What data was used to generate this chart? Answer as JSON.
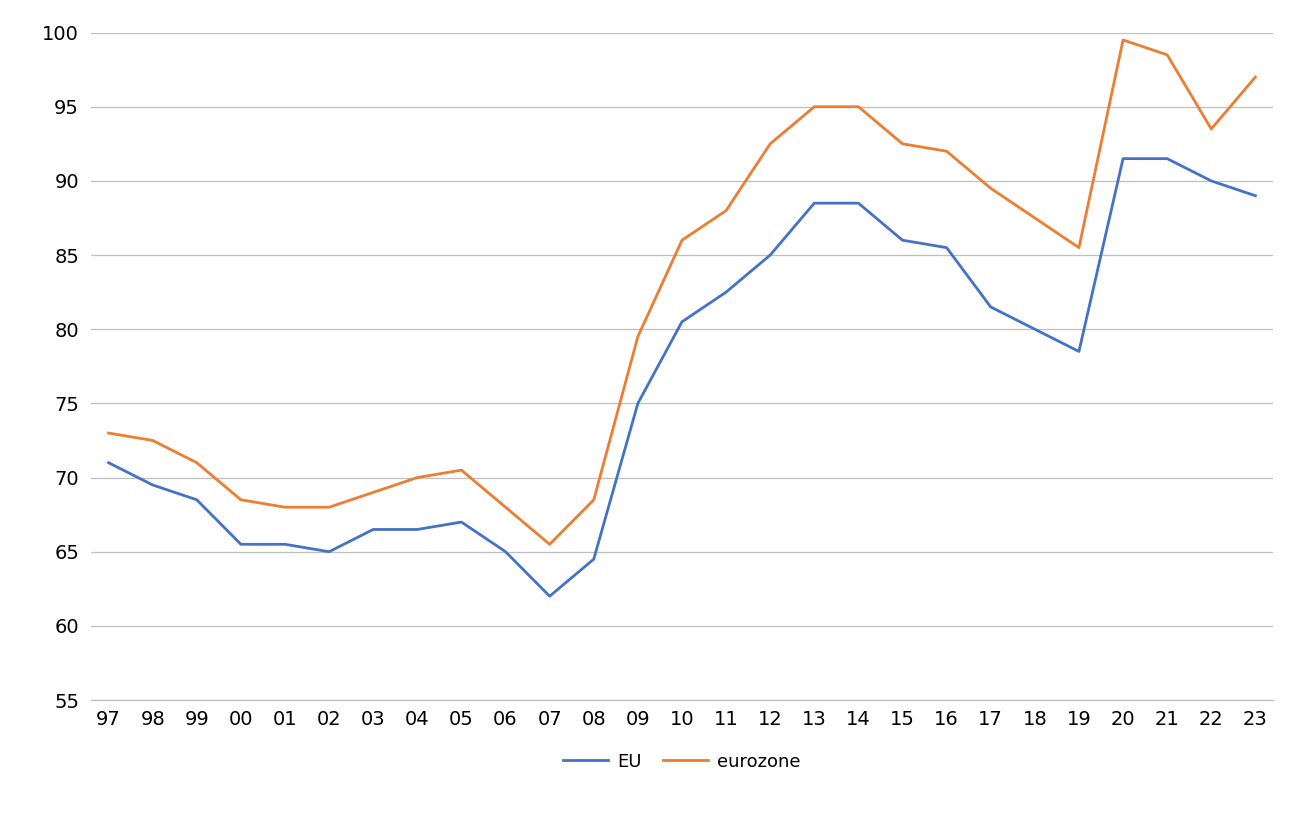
{
  "year_labels": [
    "97",
    "98",
    "99",
    "00",
    "01",
    "02",
    "03",
    "04",
    "05",
    "06",
    "07",
    "08",
    "09",
    "10",
    "11",
    "12",
    "13",
    "14",
    "15",
    "16",
    "17",
    "18",
    "19",
    "20",
    "21",
    "22",
    "23"
  ],
  "EU": [
    71.0,
    69.5,
    68.5,
    65.5,
    65.5,
    65.0,
    66.5,
    66.5,
    67.0,
    65.0,
    62.0,
    64.5,
    75.0,
    80.5,
    82.5,
    85.0,
    88.5,
    88.5,
    86.0,
    85.5,
    81.5,
    80.0,
    78.5,
    91.5,
    91.5,
    90.0,
    89.0
  ],
  "eurozone": [
    73.0,
    72.5,
    71.0,
    68.5,
    68.0,
    68.0,
    69.0,
    70.0,
    70.5,
    68.0,
    65.5,
    68.5,
    79.5,
    86.0,
    88.0,
    92.5,
    95.0,
    95.0,
    92.5,
    92.0,
    89.5,
    87.5,
    85.5,
    99.5,
    98.5,
    93.5,
    97.0
  ],
  "EU_color": "#4472C4",
  "eurozone_color": "#ED7D31",
  "ylim_min": 55,
  "ylim_max": 100,
  "yticks": [
    55,
    60,
    65,
    70,
    75,
    80,
    85,
    90,
    95,
    100
  ],
  "linewidth": 2.0,
  "background_color": "#ffffff",
  "grid_color": "#bfbfbf",
  "legend_EU": "EU",
  "legend_eurozone": "eurozone",
  "tick_fontsize": 14,
  "legend_fontsize": 13
}
